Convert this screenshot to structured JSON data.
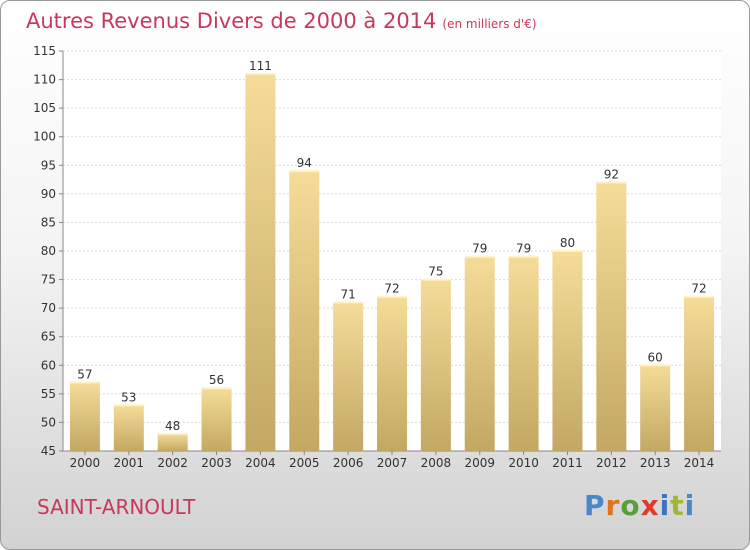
{
  "title": "Autres Revenus Divers de 2000 à 2014",
  "subtitle": "(en milliers d'€)",
  "commune": "SAINT-ARNOULT",
  "logo_text": "Proxiti",
  "colors": {
    "title": "#c8385a",
    "bar_light": "#f5dc98",
    "bar_dark": "#c2a863",
    "grid": "#d9d9d9"
  },
  "chart_data": {
    "type": "bar",
    "categories": [
      "2000",
      "2001",
      "2002",
      "2003",
      "2004",
      "2005",
      "2006",
      "2007",
      "2008",
      "2009",
      "2010",
      "2011",
      "2012",
      "2013",
      "2014"
    ],
    "values": [
      57,
      53,
      48,
      56,
      111,
      94,
      71,
      72,
      75,
      79,
      79,
      80,
      92,
      60,
      72
    ],
    "ylim": [
      45,
      115
    ],
    "yticks": [
      45,
      50,
      55,
      60,
      65,
      70,
      75,
      80,
      85,
      90,
      95,
      100,
      105,
      110,
      115
    ],
    "grid": true,
    "data_labels": true
  }
}
